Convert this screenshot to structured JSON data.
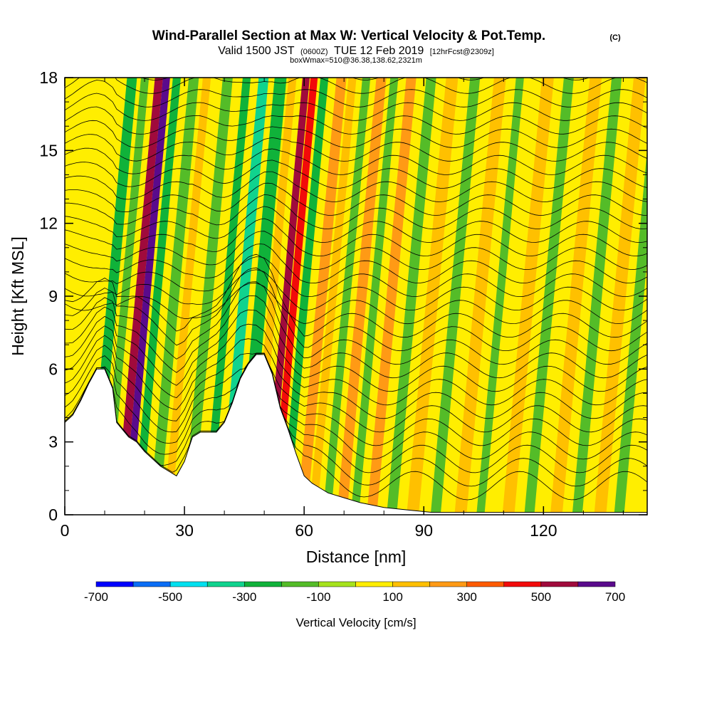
{
  "chart_data": {
    "type": "heatmap",
    "title": "Wind-Parallel Section at Max W: Vertical Velocity & Pot.Temp.",
    "title_mark": "(C)",
    "subtitle": {
      "valid": "Valid 1500 JST",
      "utc": "(0600Z)",
      "date": "TUE 12 Feb 2019",
      "forecast": "[12hrFcst@2309z]"
    },
    "box_info": "boxWmax=510@36.38,138.62,2321m",
    "xlabel": "Distance [nm]",
    "ylabel": "Height [Kft MSL]",
    "xlim": [
      0,
      146
    ],
    "ylim": [
      0,
      18
    ],
    "x_major_ticks": [
      0,
      30,
      60,
      90,
      120
    ],
    "x_minor_ticks": [
      10,
      20,
      40,
      50,
      70,
      80,
      100,
      110,
      130,
      140
    ],
    "y_major_ticks": [
      0,
      3,
      6,
      9,
      12,
      15,
      18
    ],
    "y_minor_ticks": [
      1,
      2,
      4,
      5,
      7,
      8,
      10,
      11,
      13,
      14,
      16,
      17
    ],
    "colorbar": {
      "label": "Vertical Velocity [cm/s]",
      "bounds": [
        -700,
        -600,
        -500,
        -400,
        -300,
        -200,
        -100,
        0,
        100,
        200,
        300,
        400,
        500,
        600,
        700
      ],
      "tick_labels": [
        "-700",
        "-500",
        "-300",
        "-100",
        "100",
        "300",
        "500",
        "700"
      ],
      "tick_values": [
        -700,
        -500,
        -300,
        -100,
        100,
        300,
        500,
        700
      ],
      "colors": [
        "#0000ff",
        "#0a6ef5",
        "#00e1f0",
        "#10d38e",
        "#10b23a",
        "#54bc28",
        "#a6e31c",
        "#ffee00",
        "#ffc000",
        "#ff9a15",
        "#ff5b00",
        "#f20a0a",
        "#a00a3c",
        "#5a0a8c"
      ]
    },
    "velocity_bands": [
      {
        "x": 4,
        "w": 4,
        "v": 80
      },
      {
        "x": 9,
        "w": 2.5,
        "v": -250
      },
      {
        "x": 12.5,
        "w": 2,
        "v": -150
      },
      {
        "x": 16,
        "w": 2,
        "v": 560
      },
      {
        "x": 18,
        "w": 1.8,
        "v": 650
      },
      {
        "x": 20.5,
        "w": 2,
        "v": -230
      },
      {
        "x": 24.5,
        "w": 2.5,
        "v": -150
      },
      {
        "x": 28,
        "w": 2,
        "v": 120
      },
      {
        "x": 33,
        "w": 2.5,
        "v": -140
      },
      {
        "x": 38,
        "w": 2,
        "v": -250
      },
      {
        "x": 42,
        "w": 2.5,
        "v": -320
      },
      {
        "x": 46,
        "w": 3,
        "v": -300
      },
      {
        "x": 49.5,
        "w": 2,
        "v": 150
      },
      {
        "x": 53,
        "w": 1.8,
        "v": 540
      },
      {
        "x": 55,
        "w": 1.8,
        "v": 460
      },
      {
        "x": 57.5,
        "w": 2,
        "v": -220
      },
      {
        "x": 61.5,
        "w": 2.5,
        "v": 240
      },
      {
        "x": 64.5,
        "w": 2,
        "v": 180
      },
      {
        "x": 68,
        "w": 2,
        "v": -160
      },
      {
        "x": 71.5,
        "w": 2.5,
        "v": 250
      },
      {
        "x": 75,
        "w": 2,
        "v": -130
      },
      {
        "x": 79,
        "w": 2.5,
        "v": 230
      },
      {
        "x": 84,
        "w": 2.5,
        "v": -140
      },
      {
        "x": 89,
        "w": 3,
        "v": 160
      },
      {
        "x": 95,
        "w": 2.5,
        "v": -120
      },
      {
        "x": 101,
        "w": 3,
        "v": 130
      },
      {
        "x": 106.5,
        "w": 2,
        "v": -160
      },
      {
        "x": 113,
        "w": 3,
        "v": 120
      },
      {
        "x": 118.5,
        "w": 2.5,
        "v": -140
      },
      {
        "x": 125,
        "w": 3,
        "v": 110
      },
      {
        "x": 130.5,
        "w": 2.5,
        "v": -180
      },
      {
        "x": 136,
        "w": 3,
        "v": 120
      },
      {
        "x": 141,
        "w": 2.5,
        "v": -150
      }
    ],
    "terrain": [
      [
        0,
        3.8
      ],
      [
        2,
        4.1
      ],
      [
        4,
        4.7
      ],
      [
        6,
        5.4
      ],
      [
        8,
        6.0
      ],
      [
        10,
        6.0
      ],
      [
        12,
        5.2
      ],
      [
        13,
        3.8
      ],
      [
        14,
        3.6
      ],
      [
        16,
        3.2
      ],
      [
        18,
        3.0
      ],
      [
        20,
        2.6
      ],
      [
        22,
        2.3
      ],
      [
        24,
        2.0
      ],
      [
        26,
        1.8
      ],
      [
        28,
        1.6
      ],
      [
        30,
        2.2
      ],
      [
        32,
        3.2
      ],
      [
        34,
        3.4
      ],
      [
        38,
        3.4
      ],
      [
        40,
        3.8
      ],
      [
        42,
        4.6
      ],
      [
        44,
        5.6
      ],
      [
        46,
        6.2
      ],
      [
        48,
        6.6
      ],
      [
        50,
        6.6
      ],
      [
        52,
        5.8
      ],
      [
        54,
        4.4
      ],
      [
        56,
        3.5
      ],
      [
        58,
        2.5
      ],
      [
        60,
        1.6
      ],
      [
        62,
        1.3
      ],
      [
        64,
        1.1
      ],
      [
        66,
        0.9
      ],
      [
        70,
        0.7
      ],
      [
        74,
        0.5
      ],
      [
        80,
        0.3
      ],
      [
        86,
        0.2
      ],
      [
        92,
        0.1
      ],
      [
        100,
        0.1
      ],
      [
        146,
        0.1
      ]
    ]
  }
}
